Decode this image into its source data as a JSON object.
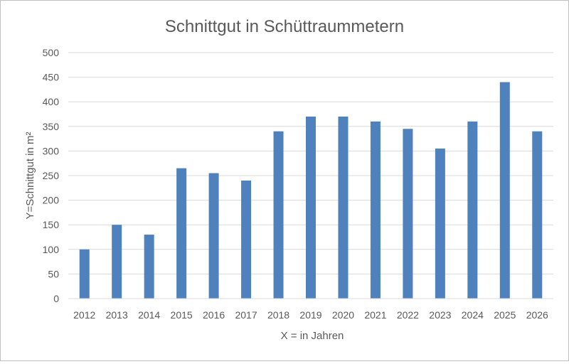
{
  "chart_data": {
    "type": "bar",
    "title": "Schnittgut in Schüttraummetern",
    "xlabel": "X = in Jahren",
    "ylabel": "Y=Schnittgut in m²",
    "categories": [
      "2012",
      "2013",
      "2014",
      "2015",
      "2016",
      "2017",
      "2018",
      "2019",
      "2020",
      "2021",
      "2022",
      "2023",
      "2024",
      "2025",
      "2026"
    ],
    "values": [
      100,
      150,
      130,
      265,
      255,
      240,
      340,
      370,
      370,
      360,
      345,
      305,
      360,
      440,
      340
    ],
    "ylim": [
      0,
      500
    ],
    "yticks": [
      0,
      50,
      100,
      150,
      200,
      250,
      300,
      350,
      400,
      450,
      500
    ],
    "grid": true,
    "legend": "none",
    "bar_color": "#4f81bd",
    "grid_color": "#d9d9d9"
  }
}
